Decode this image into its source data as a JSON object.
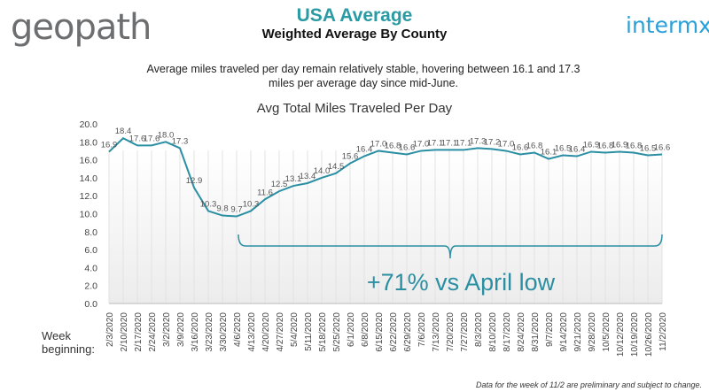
{
  "header": {
    "logo_left": "geopath",
    "logo_right": "intermx",
    "title": "USA Average",
    "subtitle": "Weighted Average By County"
  },
  "description": "Average miles traveled per day remain relatively stable, hovering between 16.1 and 17.3 miles per average day since mid-June.",
  "footnote": "Data for the week of 11/2 are preliminary and subject to change.",
  "chart_data": {
    "type": "line",
    "title": "Avg Total Miles Traveled Per Day",
    "xlabel": "Week beginning:",
    "ylabel": "",
    "ylim": [
      0,
      20
    ],
    "yticks": [
      "0.0",
      "2.0",
      "4.0",
      "6.0",
      "8.0",
      "10.0",
      "12.0",
      "14.0",
      "16.0",
      "18.0",
      "20.0"
    ],
    "grid": "vertical",
    "color": "#2a8fa3",
    "annotation": "+71% vs April low",
    "annotation_range": [
      "4/6/2020",
      "11/2/2020"
    ],
    "categories": [
      "2/3/2020",
      "2/10/2020",
      "2/17/2020",
      "2/24/2020",
      "3/2/2020",
      "3/9/2020",
      "3/16/2020",
      "3/23/2020",
      "3/30/2020",
      "4/6/2020",
      "4/13/2020",
      "4/20/2020",
      "4/27/2020",
      "5/4/2020",
      "5/11/2020",
      "5/18/2020",
      "5/25/2020",
      "6/1/2020",
      "6/8/2020",
      "6/15/2020",
      "6/22/2020",
      "6/29/2020",
      "7/6/2020",
      "7/13/2020",
      "7/20/2020",
      "7/27/2020",
      "8/3/2020",
      "8/10/2020",
      "8/17/2020",
      "8/24/2020",
      "8/31/2020",
      "9/7/2020",
      "9/14/2020",
      "9/21/2020",
      "9/28/2020",
      "10/5/2020",
      "10/12/2020",
      "10/19/2020",
      "10/26/2020",
      "11/2/2020"
    ],
    "values": [
      16.9,
      18.4,
      17.6,
      17.6,
      18.0,
      17.3,
      12.9,
      10.3,
      9.8,
      9.7,
      10.3,
      11.6,
      12.5,
      13.1,
      13.4,
      14.0,
      14.5,
      15.6,
      16.4,
      17.0,
      16.8,
      16.6,
      17.0,
      17.1,
      17.1,
      17.1,
      17.3,
      17.2,
      17.0,
      16.6,
      16.8,
      16.1,
      16.5,
      16.4,
      16.9,
      16.8,
      16.9,
      16.8,
      16.5,
      16.6
    ]
  }
}
